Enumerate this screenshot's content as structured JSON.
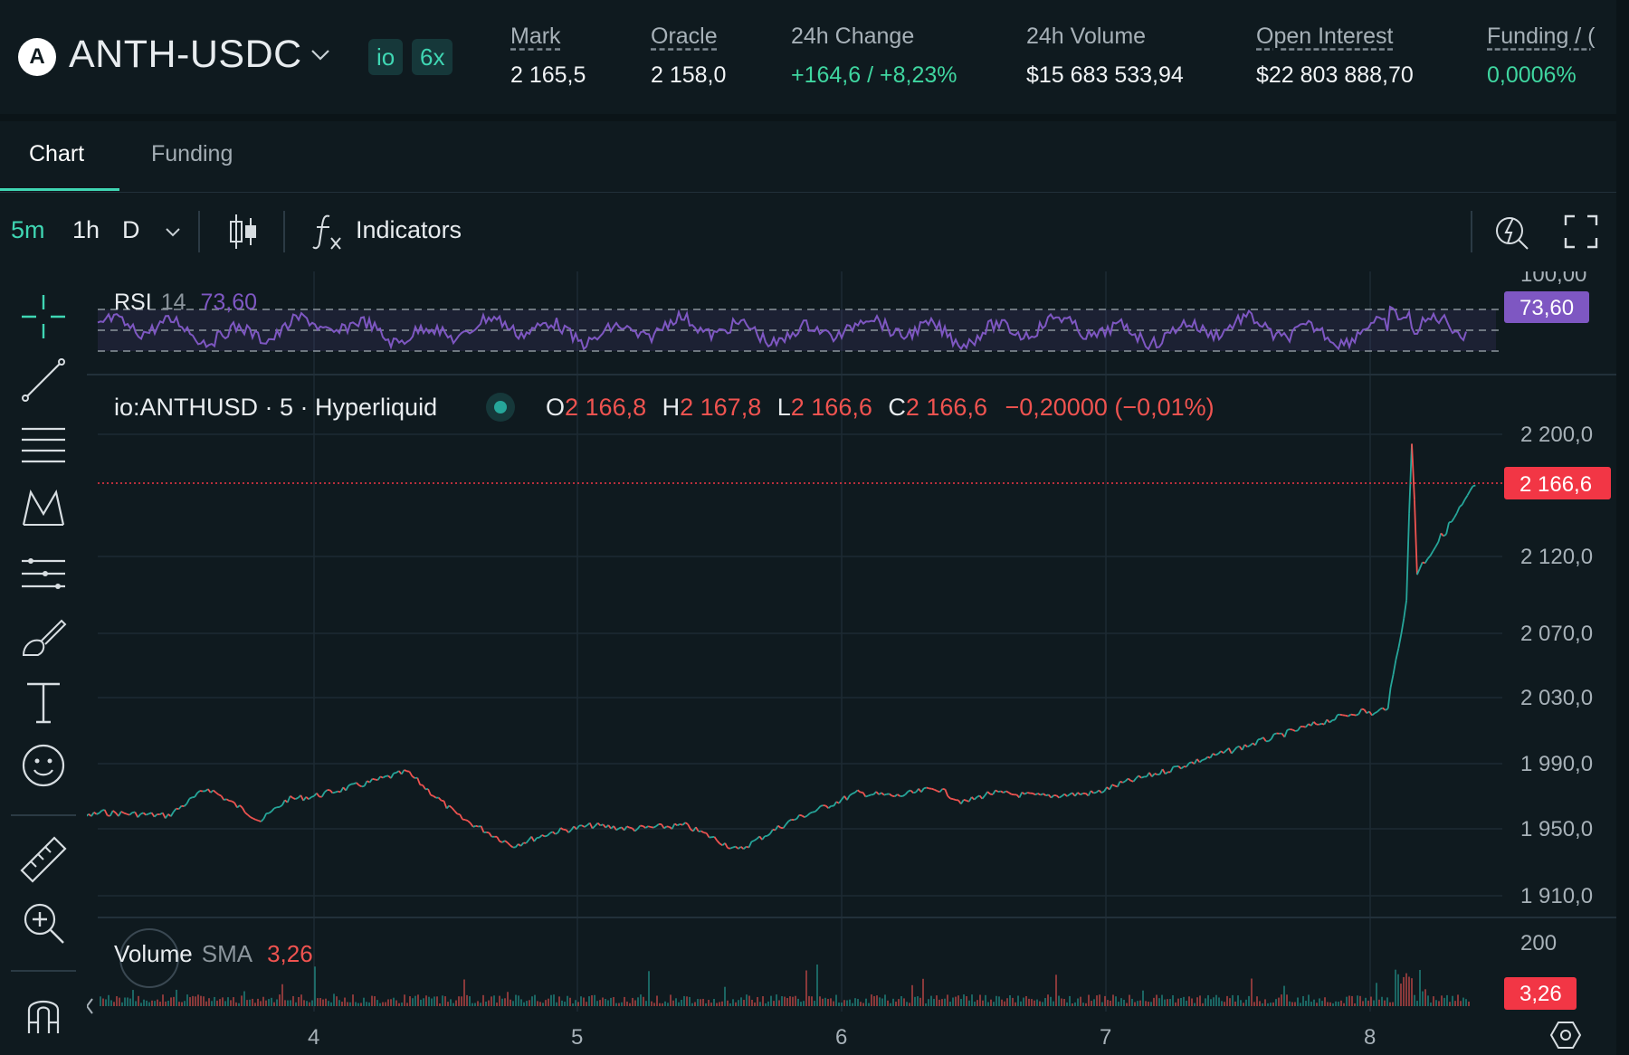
{
  "header": {
    "pair": "ANTH-USDC",
    "logo_letter": "A",
    "chips": [
      "io",
      "6x"
    ],
    "stats": [
      {
        "label": "Mark",
        "value": "2 165,5",
        "underline": true,
        "positive": false
      },
      {
        "label": "Oracle",
        "value": "2 158,0",
        "underline": true,
        "positive": false
      },
      {
        "label": "24h Change",
        "value": "+164,6 / +8,23%",
        "underline": false,
        "positive": true
      },
      {
        "label": "24h Volume",
        "value": "$15 683 533,94",
        "underline": false,
        "positive": false
      },
      {
        "label": "Open Interest",
        "value": "$22 803 888,70",
        "underline": true,
        "positive": false
      },
      {
        "label": "Funding / (",
        "value": "0,0006%",
        "underline": true,
        "positive": true
      }
    ]
  },
  "tabs": {
    "chart": "Chart",
    "funding": "Funding"
  },
  "toolbar": {
    "intervals": [
      "5m",
      "1h",
      "D"
    ],
    "indicators": "Indicators"
  },
  "rsi": {
    "name": "RSI",
    "length": "14",
    "value": "73,60",
    "top_label": "100,00",
    "badge": "73,60"
  },
  "legend": {
    "symbol": "io:ANTHUSD · 5 · Hyperliquid",
    "o_label": "O",
    "o": "2 166,8",
    "h_label": "H",
    "h": "2 167,8",
    "l_label": "L",
    "l": "2 166,6",
    "c_label": "C",
    "c": "2 166,6",
    "change": "−0,20000 (−0,01%)"
  },
  "price_badge": "2 166,6",
  "volume": {
    "name": "Volume",
    "sma": "SMA",
    "value": "3,26",
    "top_label": "200",
    "badge": "3,26"
  },
  "colors": {
    "up": "#26a69a",
    "down": "#ef5350",
    "rsi": "#7e57c2",
    "accent": "#3fd6b3",
    "badge_red": "#f23645",
    "badge_purple": "#7e57c2"
  },
  "chart_data": {
    "type": "line",
    "price_axis_ticks": [
      "2 200,0",
      "2 120,0",
      "2 070,0",
      "2 030,0",
      "1 990,0",
      "1 950,0",
      "1 910,0"
    ],
    "x_ticks": [
      "4",
      "5",
      "6",
      "7",
      "8"
    ],
    "price_series": {
      "x": [
        3.0,
        3.2,
        3.45,
        3.6,
        3.8,
        3.9,
        4.0,
        4.2,
        4.35,
        4.55,
        4.75,
        4.9,
        5.05,
        5.2,
        5.4,
        5.5,
        5.6,
        5.8,
        5.95,
        6.05,
        6.2,
        6.35,
        6.45,
        6.55,
        6.75,
        6.95,
        7.05,
        7.2,
        7.4,
        7.6,
        7.8,
        7.95,
        8.0,
        8.05,
        8.12,
        8.14,
        8.16,
        8.2,
        8.3,
        8.38
      ],
      "y": [
        1952,
        1960,
        1958,
        1975,
        1955,
        1968,
        1970,
        1978,
        1985,
        1957,
        1940,
        1948,
        1952,
        1950,
        1952,
        1945,
        1937,
        1955,
        1965,
        1972,
        1970,
        1975,
        1966,
        1972,
        1970,
        1972,
        1978,
        1985,
        1995,
        2005,
        2015,
        2022,
        2020,
        2025,
        2090,
        2205,
        2110,
        2120,
        2145,
        2166.6
      ]
    },
    "rsi_series": {
      "label": "RSI 14",
      "last": 73.6,
      "bands": [
        70,
        50,
        30
      ],
      "ylim": [
        0,
        100
      ]
    },
    "volume_series": {
      "label": "Volume SMA",
      "last": 3.26
    },
    "ylim": [
      1890,
      2215
    ]
  }
}
